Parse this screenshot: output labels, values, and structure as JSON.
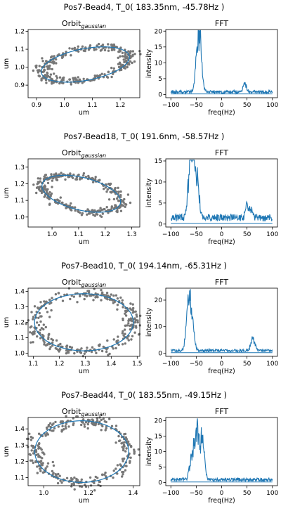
{
  "colors": {
    "scatter": "#777777",
    "curve": "#1f77b4"
  },
  "chart_data": [
    {
      "title": "Pos7-Bead4, T_0( 183.35nm, -45.78Hz )",
      "orbit": {
        "type": "scatter",
        "title": "Orbit",
        "title_sub": "gaussian",
        "xlabel": "um",
        "ylabel": "um",
        "xlim": [
          0.87,
          1.27
        ],
        "ylim": [
          0.83,
          1.21
        ],
        "xticks": [
          0.9,
          1.0,
          1.1,
          1.2
        ],
        "yticks": [
          0.9,
          1.0,
          1.1,
          1.2
        ],
        "xtick_labels": [
          "0.9",
          "1.0",
          "1.1",
          "1.2"
        ],
        "ytick_labels": [
          "0.9",
          "1.0",
          "1.1",
          "1.2"
        ],
        "ellipse": {
          "cx": 1.075,
          "cy": 1.015,
          "rx": 0.165,
          "ry": 0.165,
          "angle_deg": 20,
          "squash": 0.52
        },
        "n_points": 300
      },
      "fft": {
        "type": "line",
        "title": "FFT",
        "xlabel": "freq(Hz)",
        "ylabel": "intensity",
        "xlim": [
          -110,
          110
        ],
        "ylim": [
          -1,
          20.5
        ],
        "xticks": [
          -100,
          -50,
          0,
          50,
          100
        ],
        "yticks": [
          0,
          5,
          10,
          15,
          20
        ],
        "xtick_labels": [
          "−100",
          "−50",
          "0",
          "50",
          "100"
        ],
        "ytick_labels": [
          "0",
          "5",
          "10",
          "15",
          "20"
        ],
        "peaks": [
          [
            -45,
            19
          ],
          [
            -42,
            9
          ],
          [
            -50,
            8
          ],
          [
            -38,
            4
          ],
          [
            46,
            3.5
          ]
        ],
        "baseline": 0.9
      }
    },
    {
      "title": "Pos7-Bead18, T_0( 191.6nm, -58.57Hz )",
      "orbit": {
        "type": "scatter",
        "title": "Orbit",
        "title_sub": "gaussian",
        "xlabel": "um",
        "ylabel": "um",
        "xlim": [
          0.91,
          1.33
        ],
        "ylim": [
          0.94,
          1.35
        ],
        "xticks": [
          1.0,
          1.1,
          1.2,
          1.3
        ],
        "yticks": [
          1.0,
          1.1,
          1.2,
          1.3
        ],
        "xtick_labels": [
          "1.0",
          "1.1",
          "1.2",
          "1.3"
        ],
        "ytick_labels": [
          "1.0",
          "1.1",
          "1.2",
          "1.3"
        ],
        "ellipse": {
          "cx": 1.11,
          "cy": 1.14,
          "rx": 0.16,
          "ry": 0.16,
          "angle_deg": -28,
          "squash": 0.58
        },
        "n_points": 300
      },
      "fft": {
        "type": "line",
        "title": "FFT",
        "xlabel": "freq(Hz)",
        "ylabel": "intensity",
        "xlim": [
          -110,
          110
        ],
        "ylim": [
          -0.7,
          15.5
        ],
        "xticks": [
          -100,
          -50,
          0,
          50,
          100
        ],
        "yticks": [
          0,
          5,
          10,
          15
        ],
        "xtick_labels": [
          "−100",
          "−50",
          "0",
          "50",
          "100"
        ],
        "ytick_labels": [
          "0",
          "5",
          "10",
          "15"
        ],
        "peaks": [
          [
            -60,
            15
          ],
          [
            -55,
            13
          ],
          [
            -50,
            9
          ],
          [
            -66,
            7
          ],
          [
            -45,
            5
          ],
          [
            50,
            3
          ],
          [
            58,
            2.5
          ]
        ],
        "baseline": 1.6
      }
    },
    {
      "title": "Pos7-Bead10, T_0( 194.14nm, -65.31Hz )",
      "orbit": {
        "type": "scatter",
        "title": "Orbit",
        "title_sub": "gaussian",
        "xlabel": "um",
        "ylabel": "um",
        "xlim": [
          1.08,
          1.51
        ],
        "ylim": [
          0.98,
          1.42
        ],
        "xticks": [
          1.1,
          1.2,
          1.3,
          1.4,
          1.5
        ],
        "yticks": [
          1.0,
          1.1,
          1.2,
          1.3,
          1.4
        ],
        "xtick_labels": [
          "1.1",
          "1.2",
          "1.3",
          "1.4",
          "1.5"
        ],
        "ytick_labels": [
          "1.0",
          "1.1",
          "1.2",
          "1.3",
          "1.4"
        ],
        "ellipse": {
          "cx": 1.295,
          "cy": 1.2,
          "rx": 0.19,
          "ry": 0.19,
          "angle_deg": 0,
          "squash": 1.0,
          "rx_scale": 1.0,
          "ry_scale": 0.97
        },
        "n_points": 300
      },
      "fft": {
        "type": "line",
        "title": "FFT",
        "xlabel": "freq(Hz)",
        "ylabel": "intensity",
        "xlim": [
          -110,
          110
        ],
        "ylim": [
          -1.2,
          24.5
        ],
        "xticks": [
          -100,
          -50,
          0,
          50,
          100
        ],
        "yticks": [
          0,
          10,
          20
        ],
        "xtick_labels": [
          "−100",
          "−50",
          "0",
          "50",
          "100"
        ],
        "ytick_labels": [
          "0",
          "10",
          "20"
        ],
        "peaks": [
          [
            -65,
            23
          ],
          [
            -60,
            14
          ],
          [
            -55,
            6
          ],
          [
            -70,
            5
          ],
          [
            60,
            5
          ],
          [
            65,
            3
          ]
        ],
        "baseline": 1.0
      }
    },
    {
      "title": "Pos7-Bead44, T_0( 183.55nm, -49.15Hz )",
      "orbit": {
        "type": "scatter",
        "title": "Orbit",
        "title_sub": "gaussian",
        "xlabel": "um",
        "ylabel": "um",
        "xlim": [
          0.93,
          1.43
        ],
        "ylim": [
          1.05,
          1.47
        ],
        "xticks": [
          1.0,
          1.2,
          1.4
        ],
        "yticks": [
          1.1,
          1.2,
          1.3,
          1.4
        ],
        "xtick_labels": [
          "1.0",
          "1.2",
          "1.4"
        ],
        "ytick_labels": [
          "1.1",
          "1.2",
          "1.3",
          "1.4"
        ],
        "ellipse": {
          "cx": 1.17,
          "cy": 1.26,
          "rx": 0.21,
          "ry": 0.19,
          "angle_deg": 0,
          "squash": 1.0
        },
        "n_points": 300
      },
      "fft": {
        "type": "line",
        "title": "FFT",
        "xlabel": "freq(Hz)",
        "ylabel": "intensity",
        "xlim": [
          -110,
          110
        ],
        "ylim": [
          -1,
          21
        ],
        "xticks": [
          -100,
          -50,
          0,
          50,
          100
        ],
        "yticks": [
          0,
          5,
          10,
          15,
          20
        ],
        "xtick_labels": [
          "−100",
          "−50",
          "0",
          "50",
          "100"
        ],
        "ytick_labels": [
          "0",
          "5",
          "10",
          "15",
          "20"
        ],
        "peaks": [
          [
            -48,
            20
          ],
          [
            -40,
            14
          ],
          [
            -55,
            12
          ],
          [
            -35,
            8
          ],
          [
            -62,
            6
          ]
        ],
        "baseline": 1.0
      }
    }
  ]
}
